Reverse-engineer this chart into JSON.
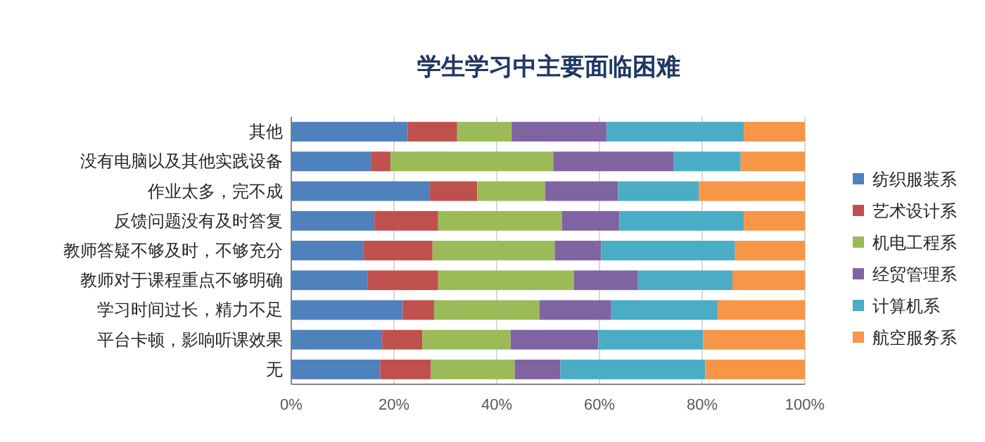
{
  "chart_data": {
    "type": "bar",
    "title": "学生学习中主要面临困难",
    "orientation": "horizontal",
    "stacked": true,
    "categories": [
      "其他",
      "没有电脑以及其他实践设备",
      "作业太多，完不成",
      "反馈问题没有及时答复",
      "教师答疑不够及时，不够充分",
      "教师对于课程重点不够明确",
      "学习时间过长，精力不足",
      "平台卡顿，影响听课效果",
      "无"
    ],
    "series": [
      {
        "name": "纺织服装系",
        "color": "#4f81bd",
        "values": [
          22.7,
          15.5,
          27.0,
          16.2,
          14.0,
          14.9,
          21.7,
          17.7,
          17.3
        ]
      },
      {
        "name": "艺术设计系",
        "color": "#c0504d",
        "values": [
          9.6,
          3.8,
          9.2,
          12.4,
          13.5,
          13.7,
          6.1,
          7.8,
          9.9
        ]
      },
      {
        "name": "机电工程系",
        "color": "#9bbb59",
        "values": [
          10.6,
          31.7,
          13.2,
          24.1,
          23.8,
          26.4,
          20.5,
          17.2,
          16.3
        ]
      },
      {
        "name": "经贸管理系",
        "color": "#8064a2",
        "values": [
          18.5,
          23.4,
          14.2,
          11.2,
          9.0,
          12.4,
          14.0,
          17.1,
          8.9
        ]
      },
      {
        "name": "计算机系",
        "color": "#4bacc6",
        "values": [
          26.7,
          13.1,
          15.8,
          24.2,
          26.1,
          18.5,
          20.7,
          20.4,
          28.2
        ]
      },
      {
        "name": "航空服务系",
        "color": "#f79646",
        "values": [
          11.9,
          12.5,
          20.6,
          11.9,
          13.6,
          14.1,
          17.0,
          19.8,
          19.4
        ]
      }
    ],
    "xlim": [
      0,
      100
    ],
    "xticks": [
      {
        "value": 0,
        "label": "0%"
      },
      {
        "value": 20,
        "label": "20%"
      },
      {
        "value": 40,
        "label": "40%"
      },
      {
        "value": 60,
        "label": "60%"
      },
      {
        "value": 80,
        "label": "80%"
      },
      {
        "value": 100,
        "label": "100%"
      }
    ],
    "grid": "x",
    "legend": "right"
  }
}
